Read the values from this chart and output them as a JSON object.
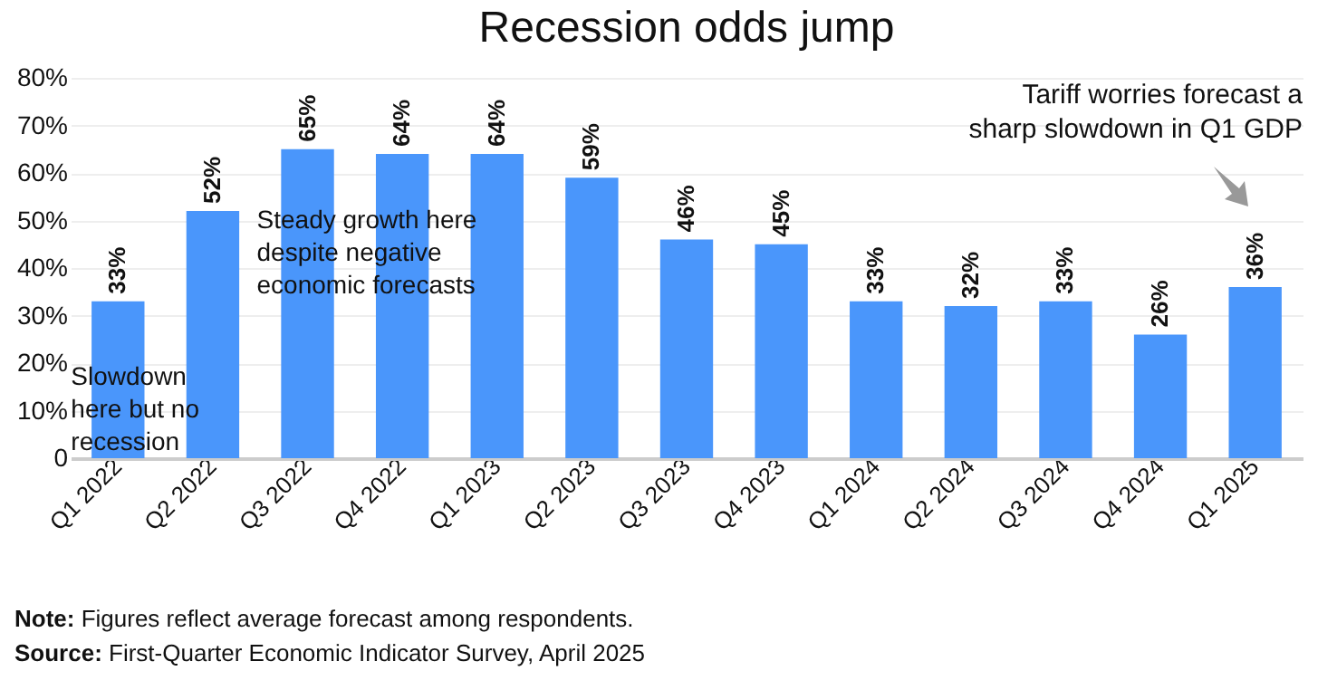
{
  "chart_data": {
    "type": "bar",
    "title": "Recession odds jump",
    "categories": [
      "Q1 2022",
      "Q2 2022",
      "Q3 2022",
      "Q4 2022",
      "Q1 2023",
      "Q2 2023",
      "Q3 2023",
      "Q4 2023",
      "Q1 2024",
      "Q2 2024",
      "Q3 2024",
      "Q4 2024",
      "Q1 2025"
    ],
    "values": [
      33,
      52,
      65,
      64,
      64,
      59,
      46,
      45,
      33,
      32,
      33,
      26,
      36
    ],
    "value_labels": [
      "33%",
      "52%",
      "65%",
      "64%",
      "64%",
      "59%",
      "46%",
      "45%",
      "33%",
      "32%",
      "33%",
      "26%",
      "36%"
    ],
    "color": "#4a96fb",
    "ylim": [
      0,
      80
    ],
    "yticks": [
      {
        "value": 0,
        "label": "0"
      },
      {
        "value": 10,
        "label": "10%"
      },
      {
        "value": 20,
        "label": "20%"
      },
      {
        "value": 30,
        "label": "30%"
      },
      {
        "value": 40,
        "label": "40%"
      },
      {
        "value": 50,
        "label": "50%"
      },
      {
        "value": 60,
        "label": "60%"
      },
      {
        "value": 70,
        "label": "70%"
      },
      {
        "value": 80,
        "label": "80%"
      }
    ],
    "grid": "y",
    "annotations": [
      {
        "text": "Slowdown here but no recession",
        "x": "Q1 2022",
        "y": 17
      },
      {
        "text": "Steady growth here despite negative economic forecasts",
        "x": "Q3 2022",
        "y": 50
      },
      "Tariff worries forecast a sharp slowdown in Q1 GDP",
      "Note: Figures reflect average forecast among respondents.",
      "Source: First-Quarter Economic Indicator Survey, April 2025"
    ]
  }
}
